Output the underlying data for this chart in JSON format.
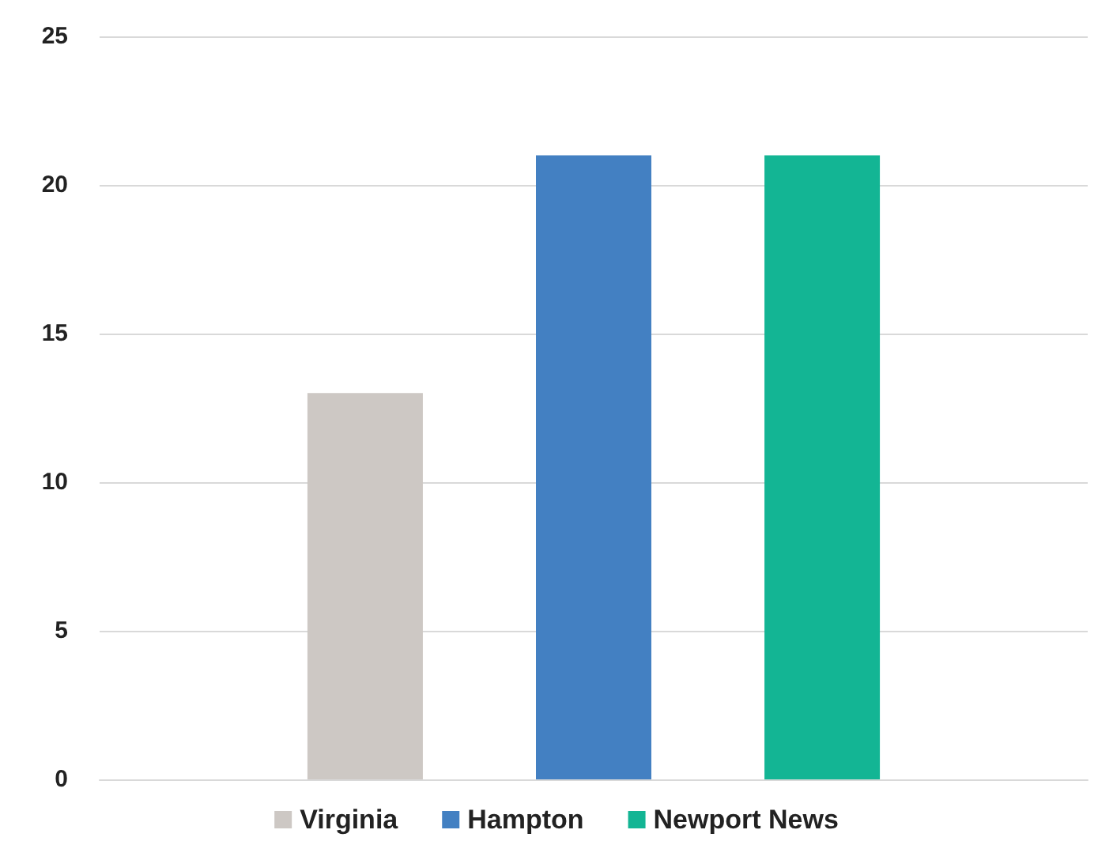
{
  "chart_data": {
    "type": "bar",
    "categories": [
      null
    ],
    "series": [
      {
        "name": "Virginia",
        "color": "#cdc8c4",
        "values": [
          13
        ]
      },
      {
        "name": "Hampton",
        "color": "#4380c2",
        "values": [
          21
        ]
      },
      {
        "name": "Newport News",
        "color": "#13b594",
        "values": [
          21
        ]
      }
    ],
    "ylim": [
      0,
      25
    ],
    "yticks": [
      0,
      5,
      10,
      15,
      20,
      25
    ],
    "grid": "y",
    "legend": "bottom"
  }
}
